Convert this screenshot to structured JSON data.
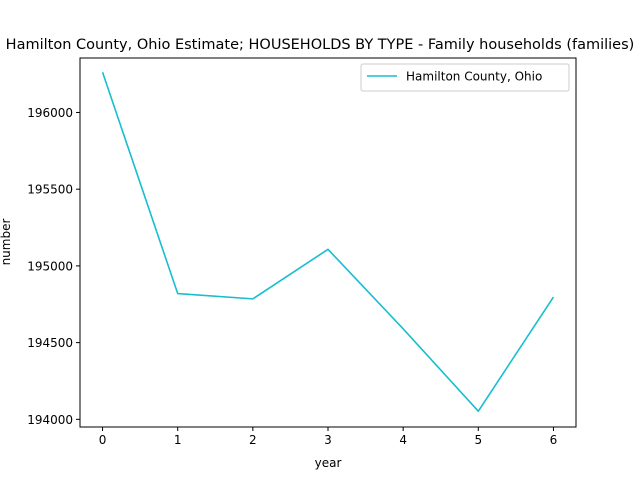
{
  "chart_data": {
    "type": "line",
    "title": "Hamilton County, Ohio Estimate; HOUSEHOLDS BY TYPE - Family households (families)",
    "xlabel": "year",
    "ylabel": "number",
    "x": [
      0,
      1,
      2,
      3,
      4,
      5,
      6
    ],
    "x_ticks": [
      "0",
      "1",
      "2",
      "3",
      "4",
      "5",
      "6"
    ],
    "y_ticks": [
      "194000",
      "194500",
      "195000",
      "195500",
      "196000"
    ],
    "xlim": [
      -0.3,
      6.3
    ],
    "ylim": [
      193950,
      196355
    ],
    "series": [
      {
        "name": "Hamilton County, Ohio",
        "color": "#17becf",
        "values": [
          196262,
          194820,
          194785,
          195108,
          194590,
          194053,
          194797
        ]
      }
    ],
    "legend_position": "top-right",
    "grid": false
  }
}
